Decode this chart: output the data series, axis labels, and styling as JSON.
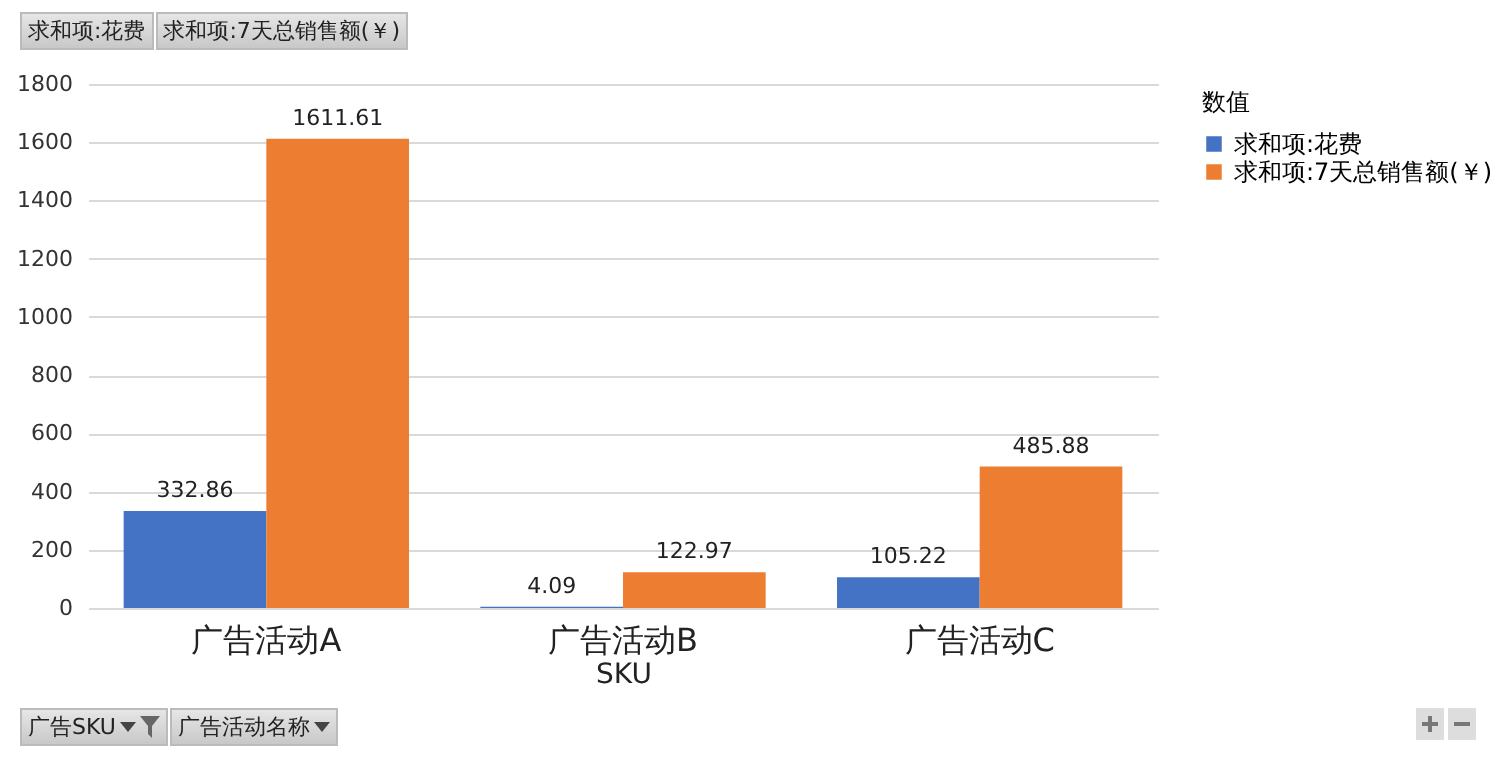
{
  "chart_data": {
    "type": "bar",
    "categories": [
      "广告活动A",
      "广告活动B",
      "广告活动C"
    ],
    "xlabel": "SKU",
    "legend_title": "数值",
    "series": [
      {
        "name": "求和项:花费",
        "color": "#4472c4",
        "values": [
          332.86,
          4.09,
          105.22
        ]
      },
      {
        "name": "求和项:7天总销售额(￥)",
        "color": "#ed7d31",
        "values": [
          1611.61,
          122.97,
          485.88
        ]
      }
    ],
    "ylim": [
      0,
      1800
    ],
    "yticks": [
      0,
      200,
      400,
      600,
      800,
      1000,
      1200,
      1400,
      1600,
      1800
    ],
    "grid": "y",
    "legend": "right",
    "data_labels": true,
    "annotations": [
      "求和项:花费",
      "求和项:7天总销售额(￥)",
      "广告SKU",
      "广告活动名称"
    ]
  }
}
